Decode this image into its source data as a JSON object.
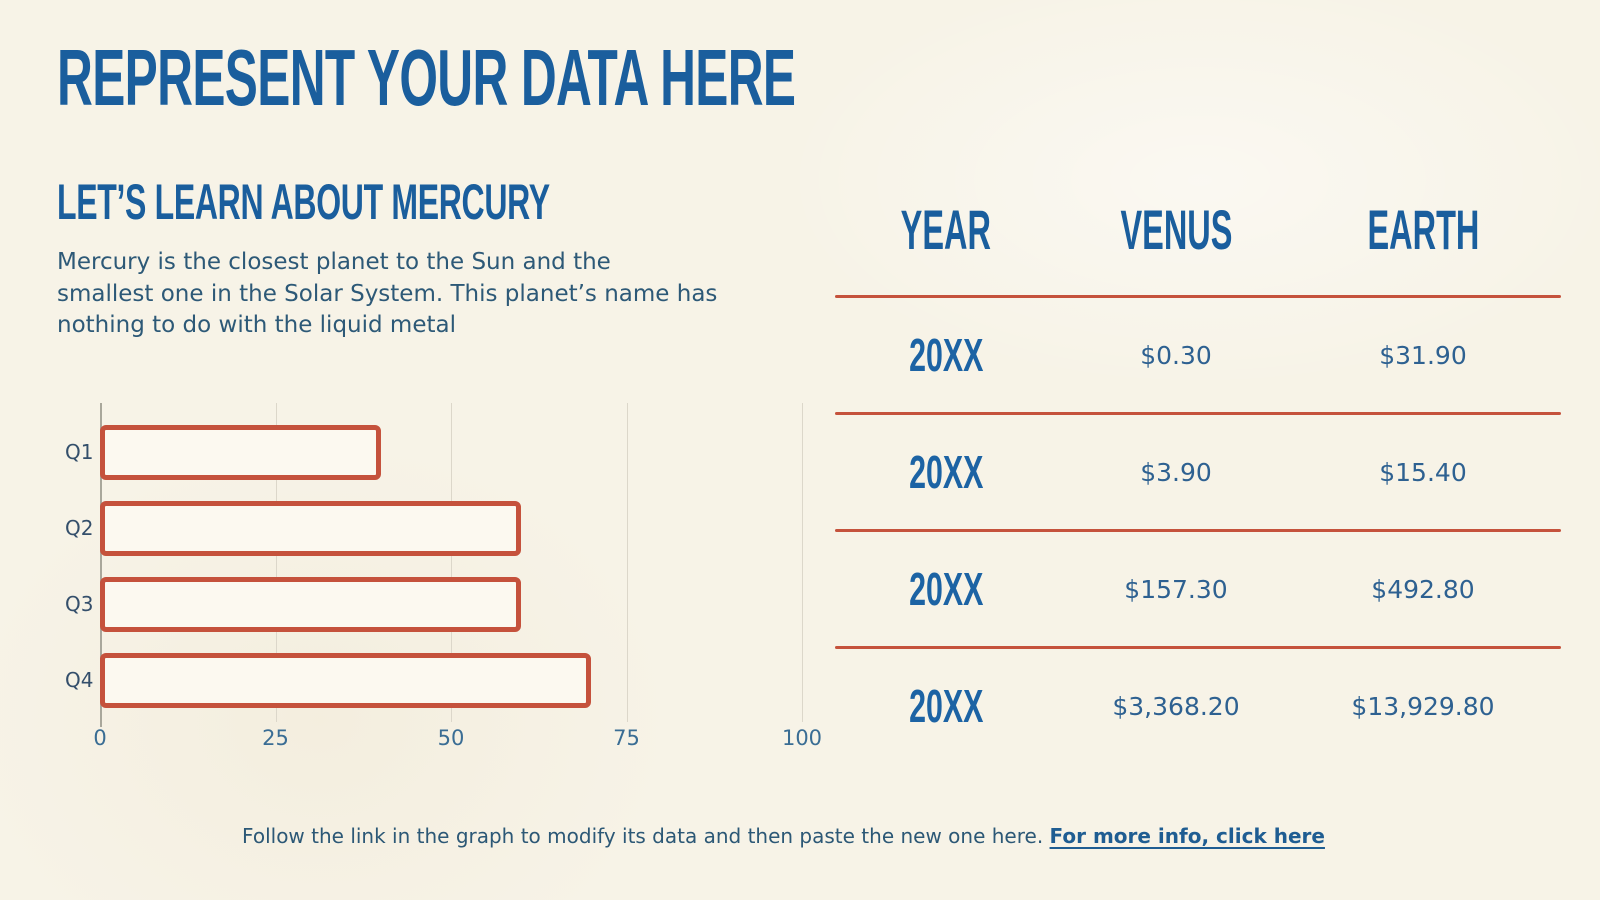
{
  "slide": {
    "title": "REPRESENT YOUR DATA HERE",
    "section": {
      "heading": "LET’S LEARN ABOUT MERCURY",
      "body": "Mercury is the closest planet to the Sun and the\nsmallest one in the Solar System. This planet’s name has\nnothing to do with the liquid metal"
    },
    "footer": {
      "text": "Follow the link in the graph to modify its data and then paste the new one here. ",
      "link_label": "For more info, click here"
    }
  },
  "chart_data": {
    "type": "bar",
    "orientation": "horizontal",
    "title": "",
    "categories": [
      "Q1",
      "Q2",
      "Q3",
      "Q4"
    ],
    "values": [
      40,
      60,
      60,
      70
    ],
    "x_ticks": [
      "0",
      "25",
      "50",
      "75",
      "100"
    ],
    "xlim": [
      0,
      100
    ],
    "grid": true,
    "legend": false,
    "bar_fill": "#fcf9f0",
    "bar_border": "#c5523c"
  },
  "table": {
    "headers": [
      "YEAR",
      "VENUS",
      "EARTH"
    ],
    "rows": [
      [
        "20XX",
        "$0.30",
        "$31.90"
      ],
      [
        "20XX",
        "$3.90",
        "$15.40"
      ],
      [
        "20XX",
        "$157.30",
        "$492.80"
      ],
      [
        "20XX",
        "$3,368.20",
        "$13,929.80"
      ]
    ]
  },
  "colors": {
    "background": "#f7f3e7",
    "heading_blue": "#1a5e9d",
    "body_blue": "#2d5977",
    "value_blue": "#2e6191",
    "accent_red": "#c5523c",
    "gridline": "#dcd7ca",
    "axis": "#a9a79b"
  }
}
